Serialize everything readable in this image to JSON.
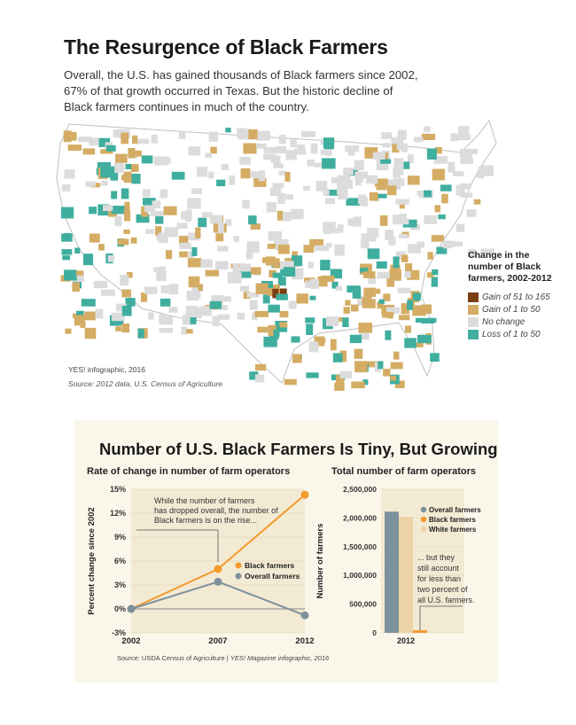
{
  "header": {
    "title": "The Resurgence of Black Farmers",
    "intro": "Overall, the U.S. has gained thousands of Black farmers since 2002, 67% of that growth occurred in Texas. But the historic decline of Black farmers continues in much of the country."
  },
  "map": {
    "legend_title": "Change in the number of Black farmers, 2002-2012",
    "legend": [
      {
        "label": "Gain of 51 to 165",
        "color": "#7a3d12"
      },
      {
        "label": "Gain of 1 to 50",
        "color": "#d4ac64"
      },
      {
        "label": "No change",
        "color": "#dcdcdc"
      },
      {
        "label": "Loss of 1 to 50",
        "color": "#3fae9f"
      }
    ],
    "credit": "YES! infographic, 2016",
    "source": "Source: 2012 data, U.S. Census of Agriculture"
  },
  "panel": {
    "title": "Number of U.S. Black Farmers Is Tiny, But Growing",
    "source_plain": "Source: USDA Census of Agriculture | ",
    "source_italic": "YES! Magazine infographic, 2016"
  },
  "chart_data": [
    {
      "type": "line",
      "title": "Rate of change in number of farm operators",
      "ylabel": "Percent change since 2002",
      "x": [
        "2002",
        "2007",
        "2012"
      ],
      "ylim": [
        -3,
        15
      ],
      "yticks": [
        "-3%",
        "0%",
        "3%",
        "6%",
        "9%",
        "12%",
        "15%"
      ],
      "series": [
        {
          "name": "Black farmers",
          "values": [
            0,
            5,
            14.3
          ],
          "color": "#f39a2c"
        },
        {
          "name": "Overall farmers",
          "values": [
            0,
            3.4,
            -0.8
          ],
          "color": "#7d919c"
        }
      ],
      "annotation": "While the number of farmers has dropped overall, the number of Black farmers is on the rise..."
    },
    {
      "type": "bar",
      "title": "Total number of farm operators",
      "ylabel": "Number of farmers",
      "categories": [
        "2012"
      ],
      "ylim": [
        0,
        2500000
      ],
      "yticks": [
        "0",
        "500,000",
        "1,000,000",
        "1,500,000",
        "2,000,000",
        "2,500,000"
      ],
      "series": [
        {
          "name": "Overall farmers",
          "values": [
            2109303
          ],
          "color": "#7d919c"
        },
        {
          "name": "White farmers",
          "values": [
            2017000
          ],
          "color": "#ecd3a5"
        },
        {
          "name": "Black farmers",
          "values": [
            44629
          ],
          "color": "#f39a2c"
        }
      ],
      "annotation": "... but they still account for less than two percent of all U.S. farmers."
    }
  ]
}
